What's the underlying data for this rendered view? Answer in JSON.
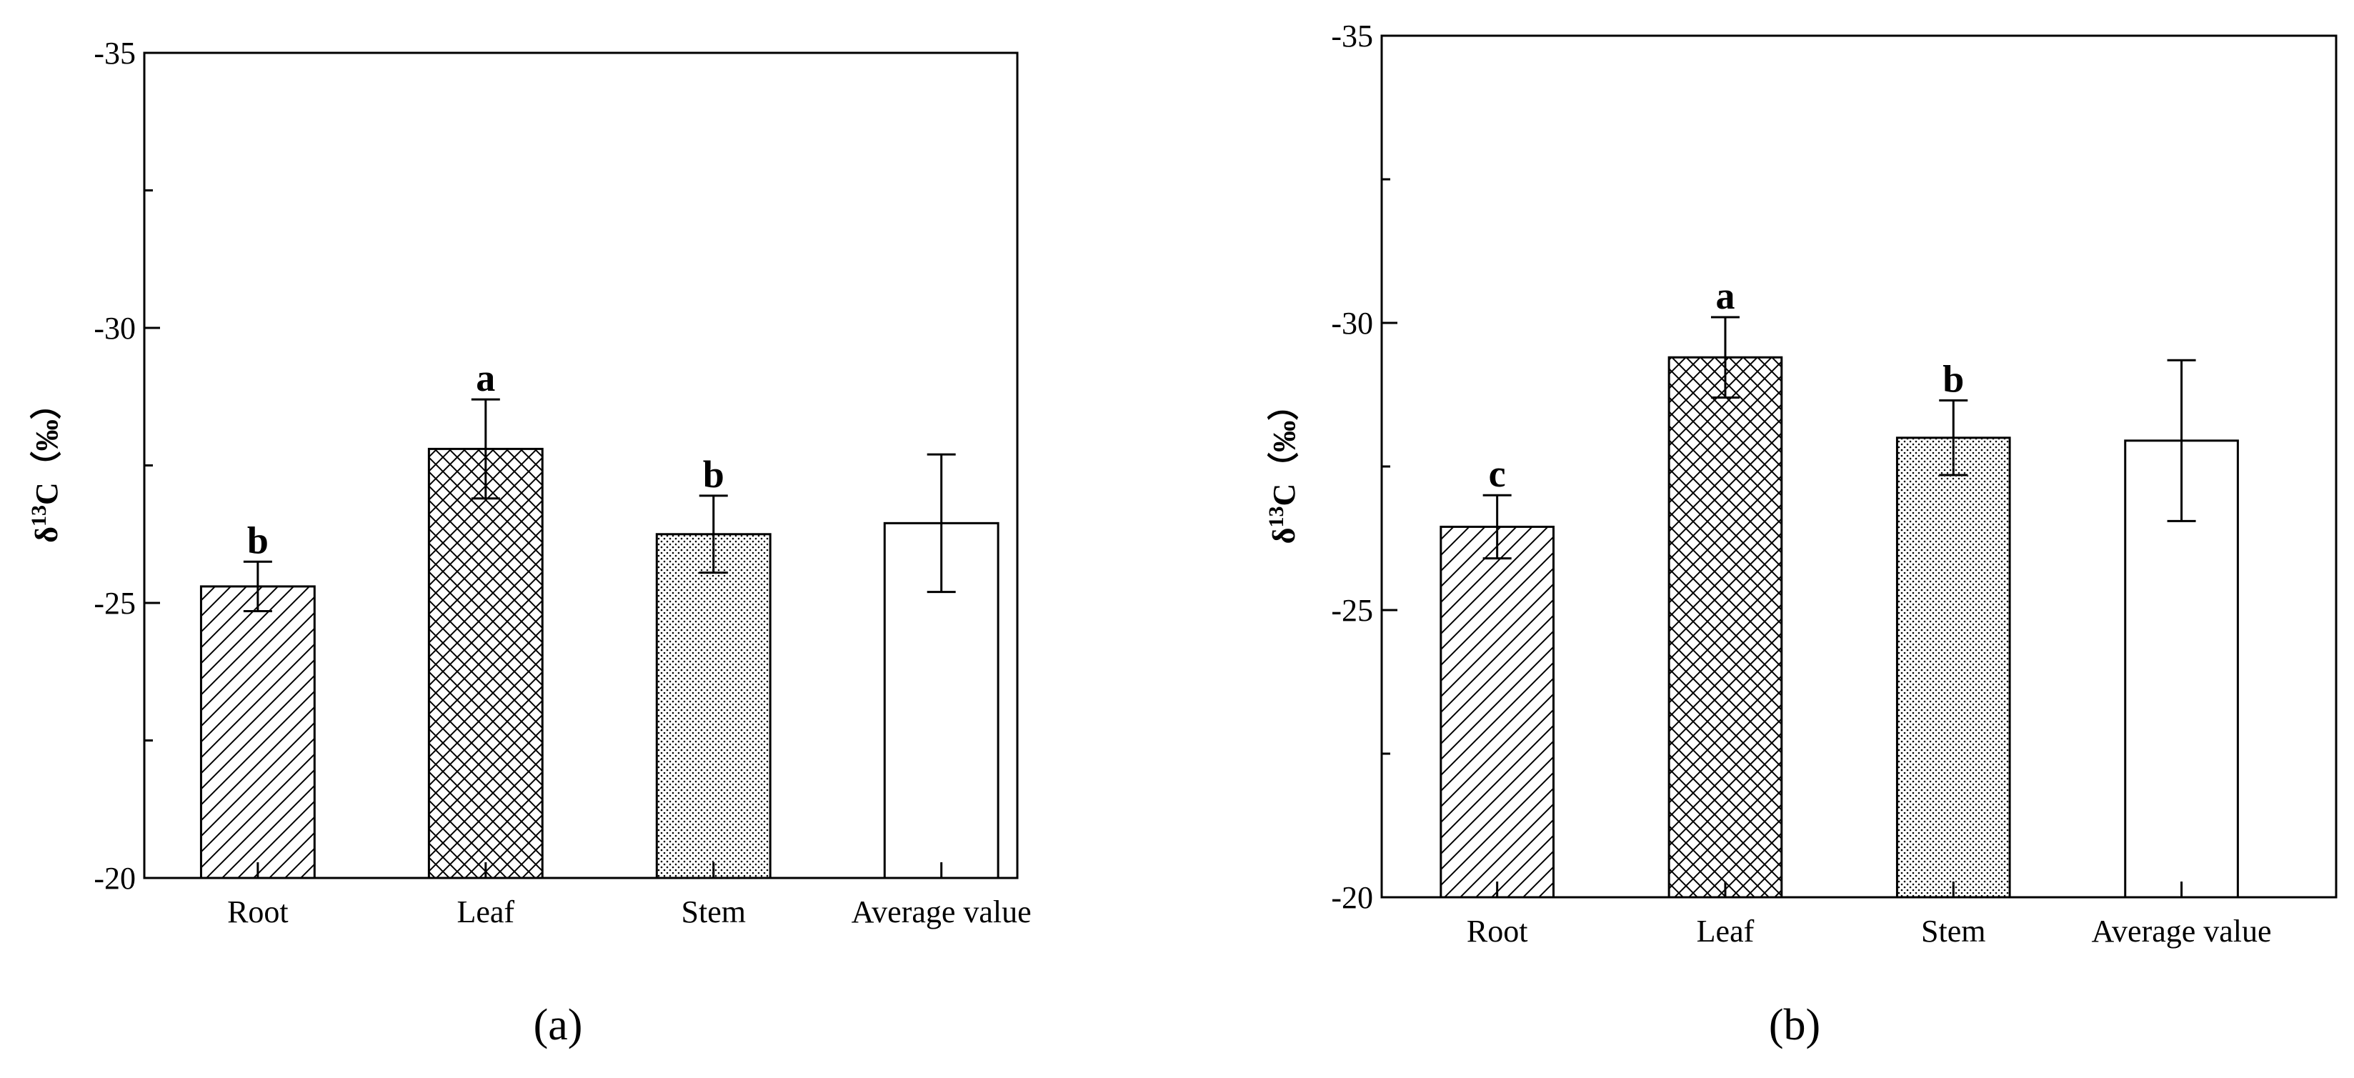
{
  "charts": [
    {
      "type": "bar",
      "panel_label": "(a)",
      "ylabel": {
        "symbol": "δ",
        "superscript": "13",
        "rest": "C（‰）"
      },
      "categories": [
        "Root",
        "Leaf",
        "Stem",
        "Average value"
      ],
      "values": [
        -25.3,
        -27.8,
        -26.25,
        -26.45
      ],
      "error": [
        0.45,
        0.9,
        0.7,
        1.25
      ],
      "letters": [
        "b",
        "a",
        "b",
        null
      ],
      "hatches": [
        "diagonal",
        "crosshatch",
        "dots",
        "none"
      ],
      "ylim": [
        -20,
        -35
      ],
      "yticks": [
        -20,
        -25,
        -30,
        -35
      ],
      "minor_yticks": [
        -22.5,
        -27.5,
        -32.5
      ]
    },
    {
      "type": "bar",
      "panel_label": "(b)",
      "ylabel": {
        "symbol": "δ",
        "superscript": "13",
        "rest": "C（‰）"
      },
      "categories": [
        "Root",
        "Leaf",
        "Stem",
        "Average value"
      ],
      "values": [
        -26.45,
        -29.4,
        -28.0,
        -27.95
      ],
      "error": [
        0.55,
        0.7,
        0.65,
        1.4
      ],
      "letters": [
        "c",
        "a",
        "b",
        null
      ],
      "hatches": [
        "diagonal",
        "crosshatch",
        "dots",
        "none"
      ],
      "ylim": [
        -20,
        -35
      ],
      "yticks": [
        -20,
        -25,
        -30,
        -35
      ],
      "minor_yticks": [
        -22.5,
        -27.5,
        -32.5
      ]
    }
  ]
}
